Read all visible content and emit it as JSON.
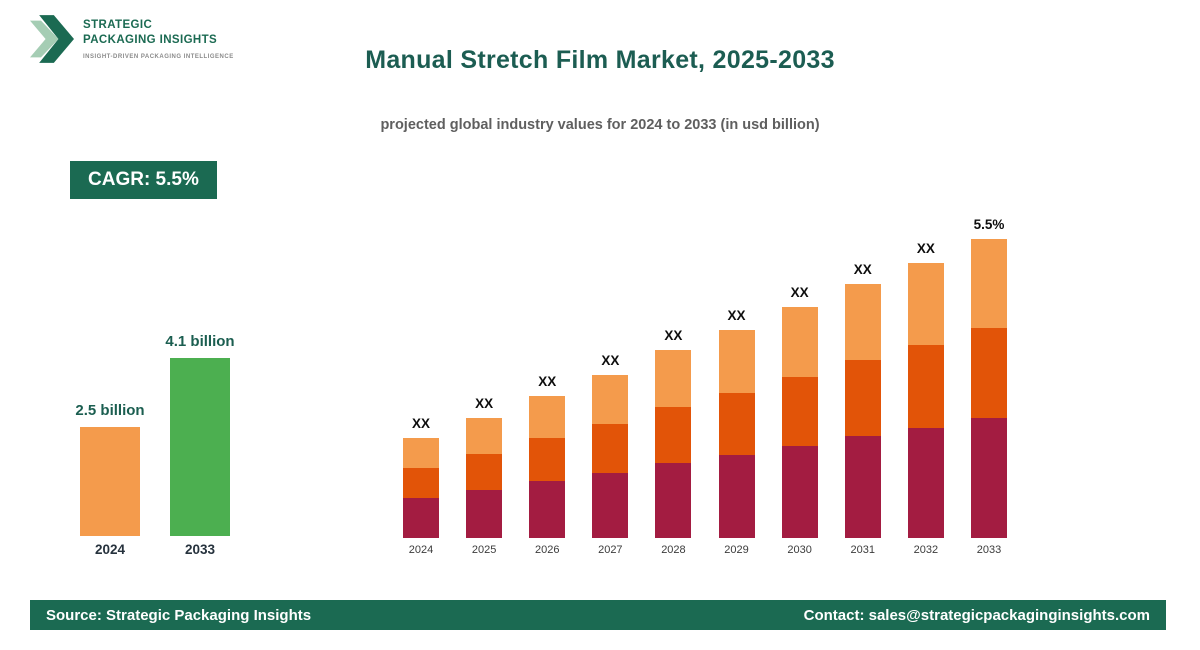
{
  "logo": {
    "line1": "STRATEGIC",
    "line2": "PACKAGING INSIGHTS",
    "tagline": "INSIGHT-DRIVEN PACKAGING INTELLIGENCE"
  },
  "header": {
    "title": "Manual Stretch Film Market, 2025-2033",
    "subtitle": "projected global industry values for 2024 to 2033 (in usd billion)"
  },
  "cagr_badge": {
    "label": "CAGR: 5.5%"
  },
  "colors": {
    "brand_green": "#1B6A52",
    "title_green": "#1C5D52",
    "maroon": "#A31C41",
    "dark_orange": "#E25408",
    "light_orange": "#F49B4C",
    "highlight_orange": "#F49B4C",
    "highlight_green": "#4CAF50"
  },
  "chart_data": [
    {
      "id": "highlight-comparison",
      "type": "bar",
      "categories": [
        "2024",
        "2033"
      ],
      "values": [
        2.5,
        4.1
      ],
      "value_labels": [
        "2.5 billion",
        "4.1 billion"
      ],
      "bar_colors": [
        "#F49B4C",
        "#4CAF50"
      ],
      "units": "usd billion",
      "grid": false
    },
    {
      "id": "projection-stacked",
      "type": "bar",
      "stacked": true,
      "categories": [
        "2024",
        "2025",
        "2026",
        "2027",
        "2028",
        "2029",
        "2030",
        "2031",
        "2032",
        "2033"
      ],
      "series": [
        {
          "name": "bottom",
          "color": "#A31C41",
          "values": [
            40,
            48,
            57,
            65,
            75,
            83,
            92,
            102,
            110,
            120
          ]
        },
        {
          "name": "middle",
          "color": "#E25408",
          "values": [
            30,
            36,
            43,
            49,
            56,
            62,
            69,
            76,
            83,
            90
          ]
        },
        {
          "name": "top",
          "color": "#F49B4C",
          "values": [
            30,
            36,
            42,
            49,
            57,
            63,
            70,
            76,
            82,
            89
          ]
        }
      ],
      "bar_labels": [
        "XX",
        "XX",
        "XX",
        "XX",
        "XX",
        "XX",
        "XX",
        "XX",
        "XX",
        "5.5%"
      ],
      "units": "relative heights; data labels masked as XX",
      "grid": false,
      "legend": false
    }
  ],
  "footer": {
    "source": "Source: Strategic Packaging Insights",
    "contact": "Contact: sales@strategicpackaginginsights.com"
  }
}
